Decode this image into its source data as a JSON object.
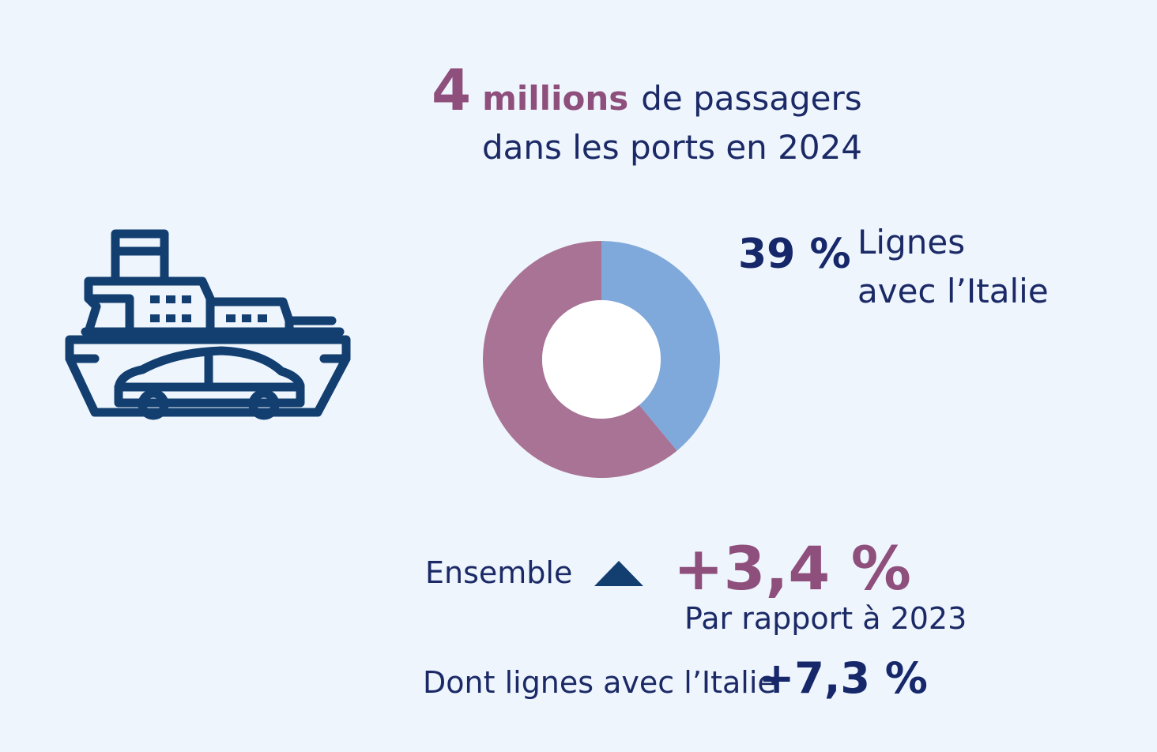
{
  "headline": {
    "number": "4",
    "unit": "millions",
    "rest": "de passagers",
    "line2": "dans les ports en 2024"
  },
  "colors": {
    "background": "#eef5fd",
    "navy": "#1b2a66",
    "plum": "#8e4f7c",
    "italy_slice": "#80a9db",
    "other_slice": "#a87394",
    "icon_stroke": "#123e70"
  },
  "icons": {
    "ship": "ferry-with-car-icon",
    "arrow": "up-triangle-icon"
  },
  "chart_data": {
    "type": "pie",
    "donut": true,
    "slices": [
      {
        "name": "Lignes avec l’Italie",
        "value": 39,
        "color": "#80a9db"
      },
      {
        "value": 61,
        "color": "#a87394"
      }
    ],
    "annotation": {
      "value_text": "39 %",
      "label_line1": "Lignes",
      "label_line2": "avec l’Italie"
    }
  },
  "growth": {
    "label": "Ensemble",
    "value": "+3,4 %",
    "reference": "Par rapport à 2023",
    "italy_label": "Dont lignes avec l’Italie",
    "italy_value": "+7,3 %"
  }
}
